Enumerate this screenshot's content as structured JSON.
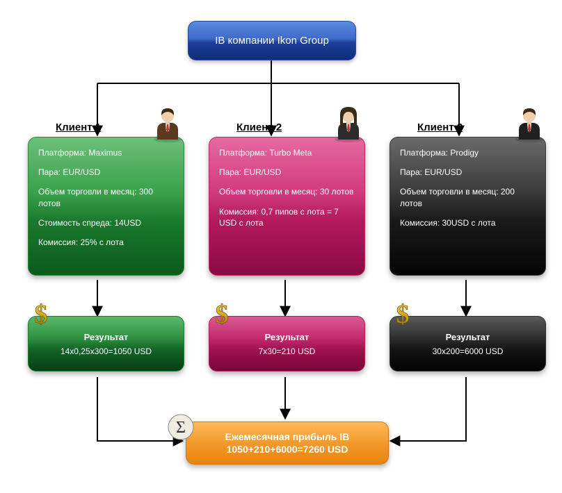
{
  "top": {
    "label": "IB компании Ikon Group"
  },
  "clients": [
    {
      "heading": "Клиент 1",
      "lines": [
        "Платформа: Maximus",
        "Пара: EUR/USD",
        "Объем торговли в месяц: 300 лотов",
        "Стоимость спреда:  14USD",
        "Комиссия: 25% с лота"
      ],
      "result_title": "Результат",
      "result_calc": "14x0,25x300=1050 USD",
      "card_gradient": [
        "#6cc07a",
        "#3aa14a",
        "#1b7a2e",
        "#0a5a1c"
      ],
      "card_border": "#2a8a3a",
      "result_gradient": [
        "#5ab86a",
        "#2f9040",
        "#146428",
        "#063f14"
      ],
      "result_border": "#1f7a30",
      "person_suit": "#5a3a20",
      "person_tie": "#b43a2a"
    },
    {
      "heading": "Клиент 2",
      "lines": [
        "Платформа: Turbo Meta",
        "Пара: EUR/USD",
        "Объем торговли в месяц: 30 лотов",
        "Комиссия: 0,7 пипов  с лота = 7 USD с лота"
      ],
      "result_title": "Результат",
      "result_calc": "7x30=210 USD",
      "card_gradient": [
        "#e66aa0",
        "#d13a7e",
        "#b41a5e",
        "#8a0a44"
      ],
      "card_border": "#b82a6a",
      "result_gradient": [
        "#da5a92",
        "#c32a6e",
        "#a0124e",
        "#780638"
      ],
      "result_border": "#a82060",
      "person_suit": "#2a2a2a",
      "person_tie": "#b43a2a"
    },
    {
      "heading": "Клиент 3",
      "lines": [
        "Платформа: Prodigy",
        "Пара: EUR/USD",
        "Объем торговли в месяц: 200 лотов",
        "Комиссия: 30USD с лота"
      ],
      "result_title": "Результат",
      "result_calc": "30x200=6000 USD",
      "card_gradient": [
        "#6a6a6a",
        "#3a3a3a",
        "#1a1a1a",
        "#050505"
      ],
      "card_border": "#3a3a3a",
      "result_gradient": [
        "#5a5a5a",
        "#2e2e2e",
        "#141414",
        "#020202"
      ],
      "result_border": "#303030",
      "person_suit": "#202020",
      "person_tie": "#b43a2a"
    }
  ],
  "summary": {
    "line1": "Ежемесячная прибыль IB",
    "line2": "1050+210+6000=7260 USD"
  },
  "arrow_color": "#000000",
  "dollar_color": "#d4a82a",
  "sigma_bg": "#f0ece0"
}
